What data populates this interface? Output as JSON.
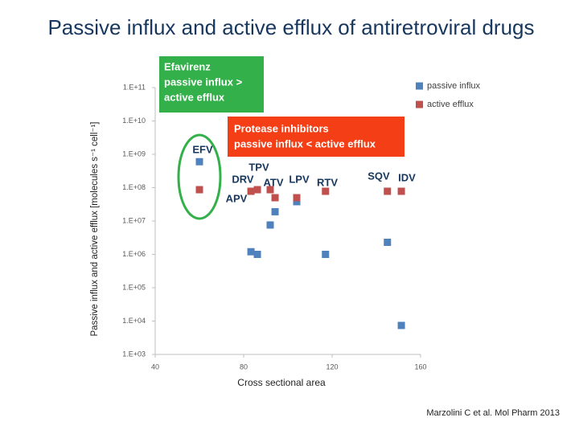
{
  "chart_data": {
    "type": "scatter",
    "title": "Passive influx and active efflux of antiretroviral drugs",
    "y_label": "Passive influx and active efflux [molecules s⁻¹ cell⁻¹]",
    "x_label": "Cross sectional area",
    "citation": "Marzolini C et al. Mol Pharm 2013",
    "efv_box": [
      "Efavirenz",
      "passive influx >",
      "active efflux"
    ],
    "pi_box": [
      "Protease inhibitors",
      "passive influx < active efflux"
    ],
    "drug_labels": [
      "EFV",
      "TPV",
      "DRV",
      "ATV",
      "LPV",
      "RTV",
      "SQV",
      "IDV",
      "APV"
    ],
    "x": [
      60,
      83.3,
      86.2,
      92,
      94.2,
      104,
      117,
      145,
      151.3
    ],
    "series": [
      {
        "name": "passive influx",
        "color": "#4f81bd",
        "values": [
          600000000,
          1200000,
          1000000,
          7600000,
          19000000,
          38000000,
          1000000,
          2300000,
          7400
        ]
      },
      {
        "name": "active efflux",
        "color": "#c0504d",
        "values": [
          87000000,
          78000000,
          87000000,
          87000000,
          50000000,
          50000000,
          78000000,
          78000000,
          78000000
        ]
      }
    ],
    "xlim": [
      40,
      160
    ],
    "xticks": [
      40,
      80,
      120,
      160
    ],
    "ylim": [
      1000,
      100000000000
    ],
    "log_y": true,
    "yticks": [
      {
        "value": 100000000000,
        "label": "1.E+11"
      },
      {
        "value": 10000000000,
        "label": "1.E+10"
      },
      {
        "value": 1000000000,
        "label": "1.E+09"
      },
      {
        "value": 100000000,
        "label": "1.E+08"
      },
      {
        "value": 10000000,
        "label": "1.E+07"
      },
      {
        "value": 1000000,
        "label": "1.E+06"
      },
      {
        "value": 100000,
        "label": "1.E+05"
      },
      {
        "value": 10000,
        "label": "1.E+04"
      },
      {
        "value": 1000,
        "label": "1.E+03"
      }
    ],
    "legend": "top-right"
  }
}
